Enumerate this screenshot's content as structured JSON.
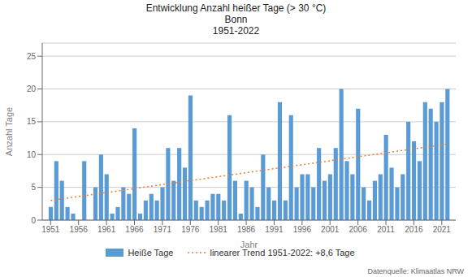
{
  "chart_data": {
    "type": "bar",
    "title": "Entwicklung Anzahl heißer Tage (> 30 °C)\nBonn\n1951-2022",
    "x_label": "Jahr",
    "y_label": "Anzahl Tage",
    "x": [
      1951,
      1952,
      1953,
      1954,
      1955,
      1956,
      1957,
      1958,
      1959,
      1960,
      1961,
      1962,
      1963,
      1964,
      1965,
      1966,
      1967,
      1968,
      1969,
      1970,
      1971,
      1972,
      1973,
      1974,
      1975,
      1976,
      1977,
      1978,
      1979,
      1980,
      1981,
      1982,
      1983,
      1984,
      1985,
      1986,
      1987,
      1988,
      1989,
      1990,
      1991,
      1992,
      1993,
      1994,
      1995,
      1996,
      1997,
      1998,
      1999,
      2000,
      2001,
      2002,
      2003,
      2004,
      2005,
      2006,
      2007,
      2008,
      2009,
      2010,
      2011,
      2012,
      2013,
      2014,
      2015,
      2016,
      2017,
      2018,
      2019,
      2020,
      2021,
      2022
    ],
    "series": [
      {
        "name": "Heiße Tage",
        "type": "bar",
        "color": "#5B9BD5",
        "values": [
          2,
          9,
          6,
          2,
          1,
          0,
          9,
          0,
          5,
          10,
          7,
          1,
          2,
          5,
          4,
          14,
          1,
          3,
          4,
          3,
          5,
          11,
          6,
          11,
          8,
          19,
          3,
          2,
          3,
          4,
          4,
          3,
          16,
          6,
          1,
          6,
          5,
          2,
          10,
          5,
          3,
          18,
          3,
          16,
          5,
          7,
          7,
          5,
          11,
          6,
          7,
          11,
          20,
          9,
          7,
          17,
          5,
          3,
          6,
          7,
          13,
          8,
          5,
          7,
          15,
          12,
          9,
          18,
          17,
          15,
          18,
          20
        ]
      },
      {
        "name": "linearer Trend 1951-2022: +8,6 Tage",
        "type": "line",
        "color": "#ED7D31",
        "line_style": "dotted",
        "values": [
          3.0,
          null,
          null,
          null,
          null,
          null,
          null,
          null,
          null,
          null,
          null,
          null,
          null,
          null,
          null,
          null,
          null,
          null,
          null,
          null,
          null,
          null,
          null,
          null,
          null,
          null,
          null,
          null,
          null,
          null,
          null,
          null,
          null,
          null,
          null,
          null,
          null,
          null,
          null,
          null,
          null,
          null,
          null,
          null,
          null,
          null,
          null,
          null,
          null,
          null,
          null,
          null,
          null,
          null,
          null,
          null,
          null,
          null,
          null,
          null,
          null,
          null,
          null,
          null,
          null,
          null,
          null,
          null,
          null,
          null,
          null,
          11.6
        ]
      }
    ],
    "xlim": [
      1949.5,
      2023.5
    ],
    "xticks": [
      1951,
      1956,
      1961,
      1966,
      1971,
      1976,
      1981,
      1986,
      1991,
      1996,
      2001,
      2006,
      2011,
      2016,
      2021
    ],
    "ylim": [
      0,
      27
    ],
    "yticks": [
      0,
      5,
      10,
      15,
      20,
      25
    ],
    "grid": true,
    "legend": "bottom",
    "annotation": "Datenquelle: Klimaatlas NRW"
  }
}
